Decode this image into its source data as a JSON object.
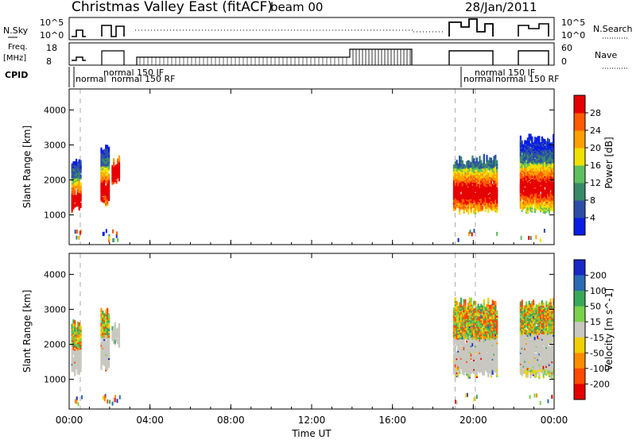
{
  "header": {
    "title": "Christmas Valley East (fitACF)",
    "beam": "beam 00",
    "date": "28/Jan/2011"
  },
  "top_panels": {
    "nsky_label": "N.Sky",
    "nsky_ticks": [
      "10^5",
      "10^0"
    ],
    "nsearch_label": "N.Search",
    "freq_label": "Freq.",
    "freq_unit": "[MHz]",
    "freq_ticks": [
      "18",
      "8"
    ],
    "nave_label": "Nave",
    "nave_ticks": [
      "60",
      "0"
    ],
    "cpid_label": "CPID",
    "cpid_annotations": [
      "normal",
      "normal 150 IF",
      "normal 150 RF",
      "normal 150 IF",
      "normal",
      "normal 150 RF"
    ]
  },
  "chart_data": [
    {
      "type": "heatmap",
      "name": "power",
      "ylabel": "Slant Range [km]",
      "yticks": [
        1000,
        2000,
        3000,
        4000
      ],
      "ylim": [
        150,
        4600
      ],
      "xlim": [
        0,
        24
      ],
      "colorbar_label": "Power [dB]",
      "colorbar_ticks": [
        "4",
        "8",
        "12",
        "16",
        "20",
        "24",
        "28"
      ],
      "colors": [
        "#0a1de6",
        "#2c4ea8",
        "#3a8a6a",
        "#5fbf5f",
        "#f0e000",
        "#ffa000",
        "#ff5a00",
        "#e60000"
      ],
      "blocks": [
        {
          "t0": 0.1,
          "t1": 0.6,
          "r0": 1100,
          "r1": 2700,
          "core": 1350
        },
        {
          "t0": 1.55,
          "t1": 2.0,
          "r0": 1250,
          "r1": 3100,
          "core": 1700
        },
        {
          "t0": 2.1,
          "t1": 2.5,
          "r0": 1900,
          "r1": 2650,
          "core": 2200
        },
        {
          "t0": 19.0,
          "t1": 21.2,
          "r0": 1050,
          "r1": 2700,
          "core": 1650
        },
        {
          "t0": 22.3,
          "t1": 24.0,
          "r0": 1050,
          "r1": 3300,
          "core": 1800
        }
      ]
    },
    {
      "type": "heatmap",
      "name": "velocity",
      "ylabel": "Slant Range [km]",
      "yticks": [
        1000,
        2000,
        3000,
        4000
      ],
      "ylim": [
        150,
        4600
      ],
      "xlim": [
        0,
        24
      ],
      "xlabel": "Time UT",
      "xticks": [
        "00:00",
        "04:00",
        "08:00",
        "12:00",
        "16:00",
        "20:00",
        "00:00"
      ],
      "colorbar_label": "Velocity [m s^-1]",
      "colorbar_ticks": [
        "200",
        "100",
        "50",
        "15",
        "-15",
        "-50",
        "-100",
        "-200"
      ],
      "colors": [
        "#1a28c8",
        "#2c6ab4",
        "#3aa85a",
        "#7ad24a",
        "#c8c8c0",
        "#f0d000",
        "#ff8c00",
        "#ff4a00",
        "#e60000"
      ],
      "blocks": [
        {
          "t0": 0.1,
          "t1": 0.6,
          "r0": 1100,
          "r1": 2700,
          "core": 1350
        },
        {
          "t0": 1.55,
          "t1": 2.0,
          "r0": 1250,
          "r1": 3100,
          "core": 1700
        },
        {
          "t0": 2.1,
          "t1": 2.5,
          "r0": 1900,
          "r1": 2650,
          "core": 2200
        },
        {
          "t0": 19.0,
          "t1": 21.2,
          "r0": 1050,
          "r1": 3300,
          "core": 1650
        },
        {
          "t0": 22.3,
          "t1": 24.0,
          "r0": 1050,
          "r1": 3300,
          "core": 1800
        }
      ]
    }
  ]
}
